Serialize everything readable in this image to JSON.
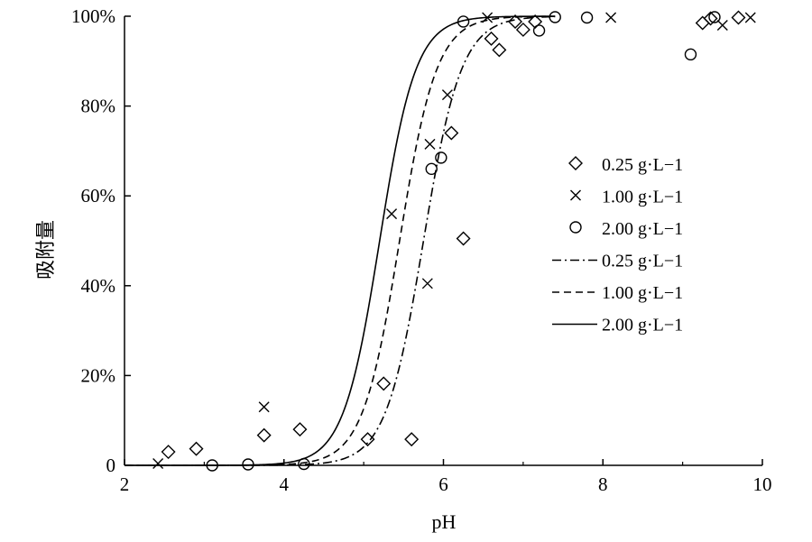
{
  "chart_data": {
    "type": "scatter",
    "xlabel": "pH",
    "ylabel": "吸附量",
    "xlim": [
      2,
      10
    ],
    "ylim": [
      0,
      100
    ],
    "x_ticks": [
      2,
      4,
      6,
      8,
      10
    ],
    "x_tick_labels": [
      "2",
      "4",
      "6",
      "8",
      "10"
    ],
    "y_ticks": [
      0,
      20,
      40,
      60,
      80,
      100
    ],
    "y_tick_labels": [
      "0",
      "20%",
      "40%",
      "60%",
      "80%",
      "100%"
    ],
    "legend_position": "right-center",
    "grid": false,
    "scatter_series": [
      {
        "name": "0.25 g·L−1",
        "marker": "diamond",
        "points": [
          [
            2.55,
            3
          ],
          [
            2.9,
            3.7
          ],
          [
            3.75,
            6.7
          ],
          [
            4.2,
            8
          ],
          [
            5.05,
            5.8
          ],
          [
            5.25,
            18.2
          ],
          [
            5.6,
            5.8
          ],
          [
            6.1,
            74
          ],
          [
            6.25,
            50.5
          ],
          [
            6.6,
            95
          ],
          [
            6.7,
            92.5
          ],
          [
            6.9,
            98.8
          ],
          [
            7.0,
            97
          ],
          [
            7.15,
            98.8
          ],
          [
            9.25,
            98.5
          ],
          [
            9.35,
            99.5
          ],
          [
            9.7,
            99.7
          ]
        ]
      },
      {
        "name": "1.00 g·L−1",
        "marker": "x",
        "points": [
          [
            2.42,
            0.4
          ],
          [
            3.75,
            13
          ],
          [
            5.35,
            56
          ],
          [
            5.8,
            40.5
          ],
          [
            5.83,
            71.5
          ],
          [
            6.05,
            82.5
          ],
          [
            6.55,
            99.7
          ],
          [
            8.1,
            99.7
          ],
          [
            9.5,
            98
          ],
          [
            9.85,
            99.7
          ]
        ]
      },
      {
        "name": "2.00 g·L−1",
        "marker": "circle",
        "points": [
          [
            3.1,
            0
          ],
          [
            3.55,
            0.2
          ],
          [
            4.25,
            0.3
          ],
          [
            5.85,
            66
          ],
          [
            5.97,
            68.5
          ],
          [
            6.25,
            98.8
          ],
          [
            7.2,
            96.8
          ],
          [
            7.4,
            99.8
          ],
          [
            7.8,
            99.7
          ],
          [
            9.1,
            91.5
          ],
          [
            9.4,
            99.8
          ]
        ]
      }
    ],
    "line_series": [
      {
        "name": "0.25 g·L−1",
        "style": "dashdot",
        "midpoint": 5.75,
        "slope": 4.2
      },
      {
        "name": "1.00 g·L−1",
        "style": "dashed",
        "midpoint": 5.45,
        "slope": 4.3
      },
      {
        "name": "2.00 g·L−1",
        "style": "solid",
        "midpoint": 5.2,
        "slope": 4.4
      }
    ]
  }
}
